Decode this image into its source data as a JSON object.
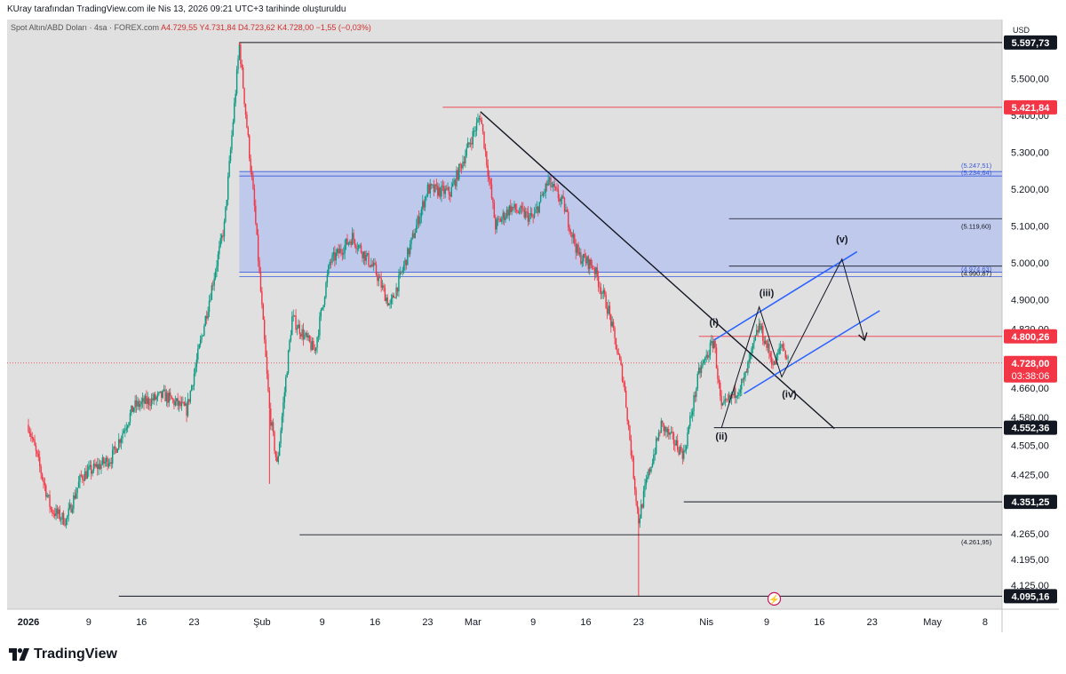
{
  "header": {
    "attribution": "KUray tarafından TradingView.com ile Nis 13, 2026 09:21 UTC+3 tarihinde oluşturuldu"
  },
  "legend": {
    "symbol": "Spot Altın/ABD Doları · 4sa · FOREX.com",
    "open": "A4.729,55",
    "high": "Y4.731,84",
    "low": "D4.723,62",
    "close": "K4.728,00",
    "change": "−1,55 (−0,03%)"
  },
  "currency": "USD",
  "brand": "TradingView",
  "colors": {
    "up": "#089981",
    "down": "#f23645",
    "zone": "#b8c4ec",
    "zone_line": "#3b5bdb",
    "channel": "#2962ff",
    "red_line": "#f23645",
    "dark": "#131722",
    "bg": "#e0e0e0"
  },
  "chart_data": {
    "type": "candlestick",
    "ylim": [
      4060,
      5660
    ],
    "y_ticks": [
      "5.500,00",
      "5.400,00",
      "5.300,00",
      "5.200,00",
      "5.100,00",
      "5.000,00",
      "4.900,00",
      "4.820,00",
      "4.660,00",
      "4.580,00",
      "4.505,00",
      "4.425,00",
      "4.265,00",
      "4.195,00",
      "4.125,00"
    ],
    "y_tick_values": [
      5500,
      5400,
      5300,
      5200,
      5100,
      5000,
      4900,
      4820,
      4660,
      4580,
      4505,
      4425,
      4265,
      4195,
      4125
    ],
    "x_ticks": [
      {
        "label": "2026",
        "date": "2026-01-01"
      },
      {
        "label": "9",
        "date": "2026-01-09"
      },
      {
        "label": "16",
        "date": "2026-01-16"
      },
      {
        "label": "23",
        "date": "2026-01-23"
      },
      {
        "label": "Şub",
        "date": "2026-02-01"
      },
      {
        "label": "9",
        "date": "2026-02-09"
      },
      {
        "label": "16",
        "date": "2026-02-16"
      },
      {
        "label": "23",
        "date": "2026-02-23"
      },
      {
        "label": "Mar",
        "date": "2026-03-01"
      },
      {
        "label": "9",
        "date": "2026-03-09"
      },
      {
        "label": "16",
        "date": "2026-03-16"
      },
      {
        "label": "23",
        "date": "2026-03-23"
      },
      {
        "label": "Nis",
        "date": "2026-04-01"
      },
      {
        "label": "9",
        "date": "2026-04-09"
      },
      {
        "label": "16",
        "date": "2026-04-16"
      },
      {
        "label": "23",
        "date": "2026-04-23"
      },
      {
        "label": "May",
        "date": "2026-05-01"
      },
      {
        "label": "8",
        "date": "2026-05-08"
      }
    ],
    "price_path": [
      {
        "date": "2026-01-01",
        "price": 4560
      },
      {
        "date": "2026-01-04",
        "price": 4330
      },
      {
        "date": "2026-01-06",
        "price": 4300
      },
      {
        "date": "2026-01-08",
        "price": 4420
      },
      {
        "date": "2026-01-12",
        "price": 4470
      },
      {
        "date": "2026-01-15",
        "price": 4610
      },
      {
        "date": "2026-01-19",
        "price": 4640
      },
      {
        "date": "2026-01-22",
        "price": 4600
      },
      {
        "date": "2026-01-24",
        "price": 4800
      },
      {
        "date": "2026-01-27",
        "price": 5100
      },
      {
        "date": "2026-01-29",
        "price": 5590
      },
      {
        "date": "2026-01-31",
        "price": 5150
      },
      {
        "date": "2026-02-02",
        "price": 4600
      },
      {
        "date": "2026-02-03",
        "price": 4450
      },
      {
        "date": "2026-02-05",
        "price": 4850
      },
      {
        "date": "2026-02-08",
        "price": 4760
      },
      {
        "date": "2026-02-10",
        "price": 5000
      },
      {
        "date": "2026-02-13",
        "price": 5070
      },
      {
        "date": "2026-02-16",
        "price": 4980
      },
      {
        "date": "2026-02-18",
        "price": 4880
      },
      {
        "date": "2026-02-20",
        "price": 5000
      },
      {
        "date": "2026-02-23",
        "price": 5200
      },
      {
        "date": "2026-02-26",
        "price": 5190
      },
      {
        "date": "2026-03-02",
        "price": 5400
      },
      {
        "date": "2026-03-04",
        "price": 5100
      },
      {
        "date": "2026-03-06",
        "price": 5150
      },
      {
        "date": "2026-03-09",
        "price": 5120
      },
      {
        "date": "2026-03-11",
        "price": 5220
      },
      {
        "date": "2026-03-13",
        "price": 5160
      },
      {
        "date": "2026-03-15",
        "price": 5020
      },
      {
        "date": "2026-03-17",
        "price": 4990
      },
      {
        "date": "2026-03-19",
        "price": 4870
      },
      {
        "date": "2026-03-21",
        "price": 4680
      },
      {
        "date": "2026-03-23",
        "price": 4300
      },
      {
        "date": "2026-03-24",
        "price": 4400
      },
      {
        "date": "2026-03-26",
        "price": 4560
      },
      {
        "date": "2026-03-29",
        "price": 4480
      },
      {
        "date": "2026-03-31",
        "price": 4700
      },
      {
        "date": "2026-04-02",
        "price": 4790
      },
      {
        "date": "2026-04-03",
        "price": 4600
      },
      {
        "date": "2026-04-06",
        "price": 4680
      },
      {
        "date": "2026-04-08",
        "price": 4830
      },
      {
        "date": "2026-04-10",
        "price": 4720
      },
      {
        "date": "2026-04-11",
        "price": 4780
      },
      {
        "date": "2026-04-12",
        "price": 4728
      }
    ],
    "extreme_wicks": [
      {
        "date": "2026-01-29",
        "high": 5597.73
      },
      {
        "date": "2026-02-02",
        "low": 4400
      },
      {
        "date": "2026-03-23",
        "low": 4095.16
      }
    ],
    "horizontal_levels": [
      {
        "value": 5597.73,
        "label": "5.597,73",
        "style": "dark"
      },
      {
        "value": 5421.84,
        "label": "5.421,84",
        "style": "red"
      },
      {
        "value": 4800.26,
        "label": "4.800,26",
        "style": "red"
      },
      {
        "value": 4552.36,
        "label": "4.552,36",
        "style": "dark"
      },
      {
        "value": 4351.25,
        "label": "4.351,25",
        "style": "dark"
      },
      {
        "value": 4095.16,
        "label": "4.095,16",
        "style": "dark"
      }
    ],
    "current_price": {
      "value": 4728.0,
      "label": "4.728,00",
      "countdown": "03:38:06"
    },
    "fib_levels": [
      {
        "value": 5119.6,
        "label": "(5.119,60)"
      },
      {
        "value": 4990.87,
        "label": "(4.990,87)"
      },
      {
        "value": 4261.95,
        "label": "(4.261,95)"
      }
    ],
    "zone": {
      "top": 5247.51,
      "bottom": 4974.63,
      "top_label": "(5.247,51)",
      "top_label2": "(5.234,64)",
      "bottom_label": "(4.974,63)"
    },
    "trendline": [
      {
        "date": "2026-03-02",
        "price": 5410
      },
      {
        "date": "2026-04-18",
        "price": 4550
      }
    ],
    "channel": [
      {
        "date": "2026-04-02",
        "price": 4790,
        "date2": "2026-04-21",
        "price2": 5030
      },
      {
        "date": "2026-04-06",
        "price": 4645,
        "date2": "2026-04-24",
        "price2": 4870
      }
    ],
    "wave_labels": [
      {
        "label": "(i)",
        "date": "2026-04-02",
        "price": 4830
      },
      {
        "label": "(ii)",
        "date": "2026-04-03",
        "price": 4520
      },
      {
        "label": "(iii)",
        "date": "2026-04-09",
        "price": 4910
      },
      {
        "label": "(iv)",
        "date": "2026-04-12",
        "price": 4635
      },
      {
        "label": "(v)",
        "date": "2026-04-19",
        "price": 5055
      }
    ],
    "projection": [
      {
        "date": "2026-04-03",
        "price": 4552
      },
      {
        "date": "2026-04-08",
        "price": 4880
      },
      {
        "date": "2026-04-11",
        "price": 4690
      },
      {
        "date": "2026-04-19",
        "price": 5010
      },
      {
        "date": "2026-04-22",
        "price": 4790
      }
    ]
  }
}
